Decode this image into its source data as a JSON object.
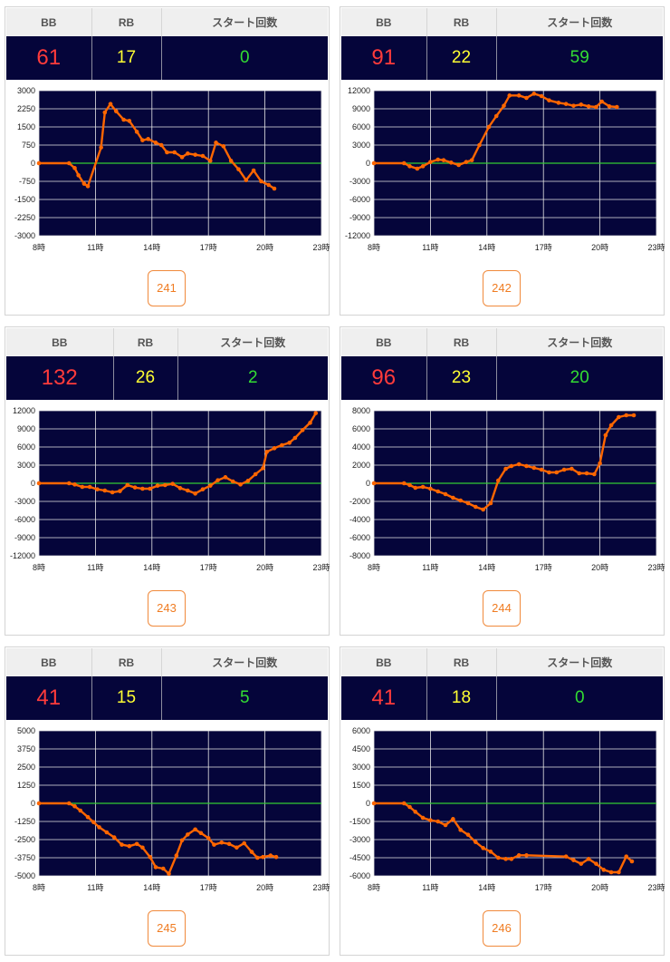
{
  "headers": {
    "bb": "BB",
    "rb": "RB",
    "start": "スタート回数"
  },
  "colors": {
    "plot_bg": "#05053a",
    "line": "#ff6600",
    "zero_line": "#33cc33",
    "bb": "#ff3b3b",
    "rb": "#ffff33",
    "start": "#33dd33"
  },
  "panels": [
    {
      "bb": "61",
      "rb": "17",
      "start": "0",
      "machine": "241"
    },
    {
      "bb": "91",
      "rb": "22",
      "start": "59",
      "machine": "242"
    },
    {
      "bb": "132",
      "rb": "26",
      "start": "2",
      "machine": "243"
    },
    {
      "bb": "96",
      "rb": "23",
      "start": "20",
      "machine": "244"
    },
    {
      "bb": "41",
      "rb": "15",
      "start": "5",
      "machine": "245"
    },
    {
      "bb": "41",
      "rb": "18",
      "start": "0",
      "machine": "246"
    }
  ],
  "chart_data": [
    {
      "type": "line",
      "xlim": [
        8,
        23
      ],
      "ylim": [
        -3000,
        3000
      ],
      "xticks": [
        "8時",
        "11時",
        "14時",
        "17時",
        "20時",
        "23時"
      ],
      "yticks": [
        "3000",
        "2250",
        "1500",
        "750",
        "0",
        "-750",
        "-1500",
        "-2250",
        "-3000"
      ],
      "x": [
        8,
        9.6,
        9.9,
        10.1,
        10.4,
        10.6,
        11.3,
        11.5,
        11.8,
        12.1,
        12.5,
        12.8,
        13.2,
        13.5,
        13.8,
        14.2,
        14.5,
        14.8,
        15.2,
        15.6,
        15.9,
        16.3,
        16.7,
        17.1,
        17.4,
        17.8,
        18.2,
        18.6,
        19.0,
        19.4,
        19.8,
        20.2,
        20.5
      ],
      "y": [
        0,
        0,
        -200,
        -500,
        -850,
        -950,
        650,
        2100,
        2450,
        2150,
        1800,
        1750,
        1300,
        950,
        1000,
        850,
        750,
        450,
        450,
        250,
        400,
        350,
        300,
        100,
        850,
        700,
        100,
        -250,
        -700,
        -300,
        -750,
        -900,
        -1050
      ]
    },
    {
      "type": "line",
      "xlim": [
        8,
        23
      ],
      "ylim": [
        -12000,
        12000
      ],
      "xticks": [
        "8時",
        "11時",
        "14時",
        "17時",
        "20時",
        "23時"
      ],
      "yticks": [
        "12000",
        "9000",
        "6000",
        "3000",
        "0",
        "-3000",
        "-6000",
        "-9000",
        "-12000"
      ],
      "x": [
        8,
        9.6,
        9.9,
        10.3,
        10.6,
        11.0,
        11.4,
        11.7,
        12.1,
        12.5,
        12.9,
        13.2,
        13.6,
        14.1,
        14.5,
        14.9,
        15.2,
        15.7,
        16.1,
        16.5,
        16.9,
        17.3,
        17.8,
        18.2,
        18.6,
        19.0,
        19.4,
        19.8,
        20.1,
        20.5,
        20.9
      ],
      "y": [
        0,
        0,
        -500,
        -900,
        -500,
        200,
        600,
        500,
        100,
        -300,
        200,
        500,
        3000,
        6000,
        7800,
        9500,
        11200,
        11200,
        10800,
        11500,
        11100,
        10400,
        10000,
        9800,
        9500,
        9700,
        9400,
        9300,
        10200,
        9400,
        9300
      ]
    },
    {
      "type": "line",
      "xlim": [
        8,
        23
      ],
      "ylim": [
        -12000,
        12000
      ],
      "xticks": [
        "8時",
        "11時",
        "14時",
        "17時",
        "20時",
        "23時"
      ],
      "yticks": [
        "12000",
        "9000",
        "6000",
        "3000",
        "0",
        "-3000",
        "-6000",
        "-9000",
        "-12000"
      ],
      "x": [
        8,
        9.6,
        9.9,
        10.3,
        10.7,
        11.1,
        11.5,
        11.9,
        12.3,
        12.7,
        13.1,
        13.5,
        13.9,
        14.3,
        14.7,
        15.1,
        15.5,
        15.9,
        16.3,
        16.7,
        17.1,
        17.5,
        17.9,
        18.3,
        18.7,
        19.1,
        19.5,
        19.9,
        20.1,
        20.5,
        20.9,
        21.3,
        21.6,
        22.0,
        22.4,
        22.7
      ],
      "y": [
        0,
        0,
        -200,
        -600,
        -600,
        -1000,
        -1200,
        -1500,
        -1300,
        -300,
        -700,
        -900,
        -900,
        -400,
        -300,
        -100,
        -800,
        -1200,
        -1700,
        -1000,
        -400,
        500,
        1000,
        300,
        -200,
        400,
        1500,
        2500,
        5200,
        5800,
        6300,
        6700,
        7500,
        8800,
        10000,
        11600
      ]
    },
    {
      "type": "line",
      "xlim": [
        8,
        23
      ],
      "ylim": [
        -8000,
        8000
      ],
      "xticks": [
        "8時",
        "11時",
        "14時",
        "17時",
        "20時",
        "23時"
      ],
      "yticks": [
        "8000",
        "6000",
        "4000",
        "2000",
        "0",
        "-2000",
        "-4000",
        "-6000",
        "-8000"
      ],
      "x": [
        8,
        9.6,
        9.9,
        10.2,
        10.6,
        11.0,
        11.4,
        11.8,
        12.2,
        12.6,
        13.0,
        13.4,
        13.8,
        14.2,
        14.6,
        15.0,
        15.3,
        15.7,
        16.1,
        16.5,
        16.9,
        17.3,
        17.7,
        18.1,
        18.5,
        18.9,
        19.3,
        19.7,
        20.0,
        20.3,
        20.6,
        21.0,
        21.4,
        21.8
      ],
      "y": [
        0,
        0,
        -200,
        -500,
        -400,
        -600,
        -900,
        -1200,
        -1600,
        -1900,
        -2200,
        -2600,
        -2900,
        -2200,
        300,
        1600,
        1900,
        2100,
        1900,
        1700,
        1500,
        1200,
        1200,
        1500,
        1600,
        1100,
        1100,
        1000,
        2200,
        5300,
        6400,
        7300,
        7500,
        7500
      ]
    },
    {
      "type": "line",
      "xlim": [
        8,
        23
      ],
      "ylim": [
        -5000,
        5000
      ],
      "xticks": [
        "8時",
        "11時",
        "14時",
        "17時",
        "20時",
        "23時"
      ],
      "yticks": [
        "5000",
        "3750",
        "2500",
        "1250",
        "0",
        "-1250",
        "-2500",
        "-3750",
        "-5000"
      ],
      "x": [
        8,
        9.6,
        9.9,
        10.2,
        10.6,
        10.9,
        11.2,
        11.6,
        12.0,
        12.4,
        12.8,
        13.2,
        13.5,
        13.9,
        14.2,
        14.6,
        14.9,
        15.3,
        15.6,
        15.9,
        16.3,
        16.6,
        17.0,
        17.3,
        17.7,
        18.1,
        18.5,
        18.9,
        19.3,
        19.6,
        19.9,
        20.3,
        20.6
      ],
      "y": [
        0,
        0,
        -200,
        -500,
        -950,
        -1300,
        -1650,
        -2000,
        -2350,
        -2850,
        -2950,
        -2800,
        -3050,
        -3700,
        -4400,
        -4500,
        -4850,
        -3600,
        -2550,
        -2150,
        -1800,
        -2050,
        -2400,
        -2850,
        -2700,
        -2800,
        -3050,
        -2750,
        -3350,
        -3750,
        -3700,
        -3600,
        -3700
      ]
    },
    {
      "type": "line",
      "xlim": [
        8,
        23
      ],
      "ylim": [
        -6000,
        6000
      ],
      "xticks": [
        "8時",
        "11時",
        "14時",
        "17時",
        "20時",
        "23時"
      ],
      "yticks": [
        "6000",
        "4500",
        "3000",
        "1500",
        "0",
        "-1500",
        "-3000",
        "-4500",
        "-6000"
      ],
      "x": [
        8,
        9.6,
        9.9,
        10.2,
        10.6,
        11.0,
        11.4,
        11.8,
        12.2,
        12.6,
        13.0,
        13.4,
        13.8,
        14.2,
        14.6,
        15.0,
        15.3,
        15.7,
        16.1,
        18.2,
        18.6,
        19.0,
        19.4,
        19.8,
        20.2,
        20.6,
        21.0,
        21.4,
        21.7
      ],
      "y": [
        0,
        0,
        -300,
        -700,
        -1200,
        -1400,
        -1500,
        -1800,
        -1300,
        -2200,
        -2600,
        -3200,
        -3700,
        -4000,
        -4500,
        -4600,
        -4600,
        -4300,
        -4300,
        -4400,
        -4700,
        -5000,
        -4600,
        -5000,
        -5500,
        -5700,
        -5700,
        -4400,
        -4800
      ]
    }
  ]
}
